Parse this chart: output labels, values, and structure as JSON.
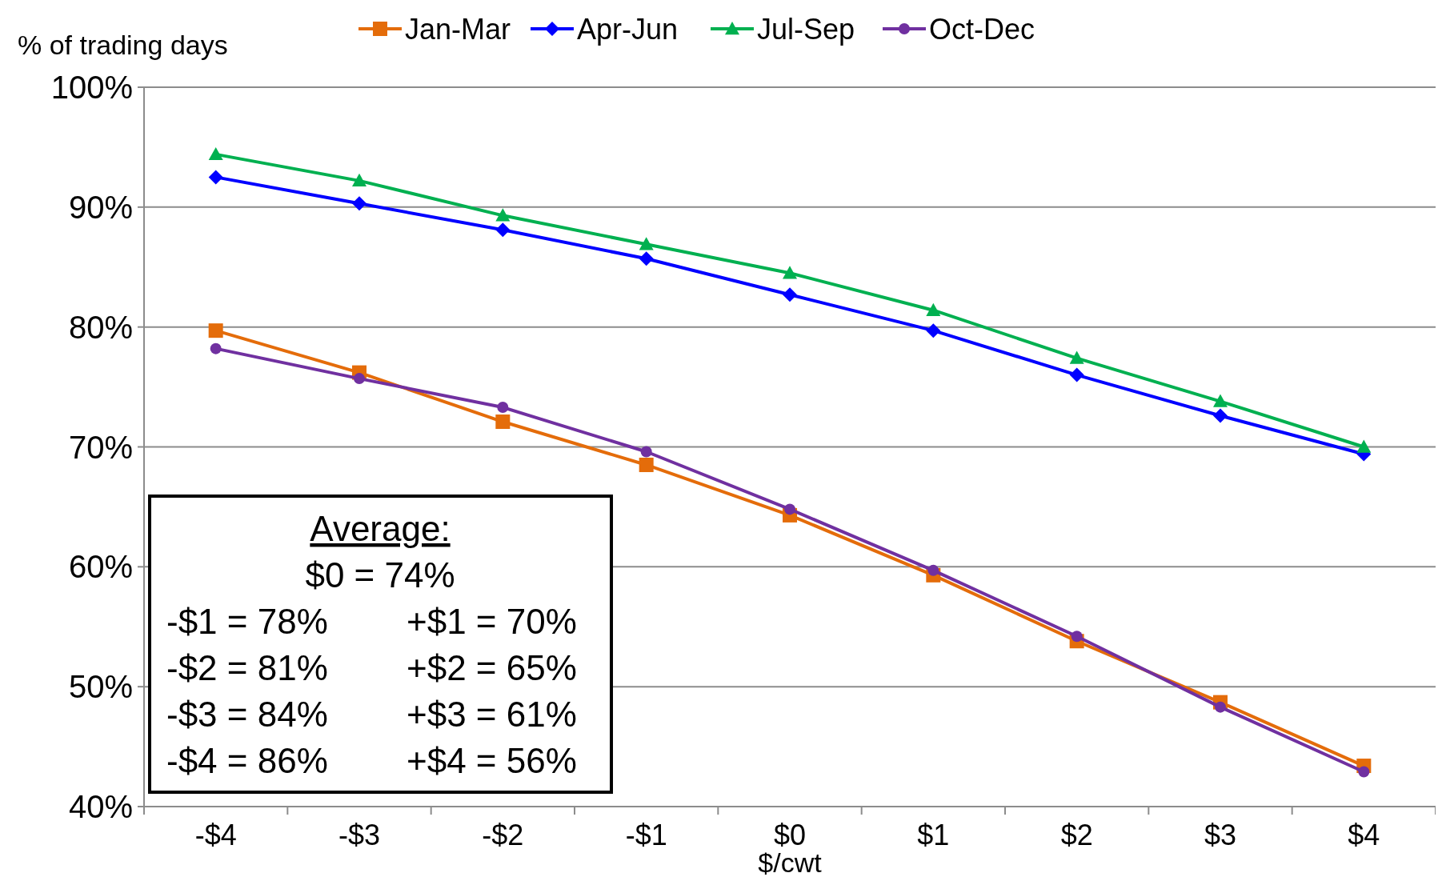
{
  "chart_data": {
    "type": "line",
    "ylabel": "% of trading days",
    "xlabel": "$/cwt",
    "categories": [
      "-$4",
      "-$3",
      "-$2",
      "-$1",
      "$0",
      "$1",
      "$2",
      "$3",
      "$4"
    ],
    "series": [
      {
        "name": "Jan-Mar",
        "color": "#e46c0a",
        "marker": "square",
        "values": [
          79.7,
          76.2,
          72.1,
          68.5,
          64.3,
          59.3,
          53.8,
          48.7,
          43.4
        ]
      },
      {
        "name": "Apr-Jun",
        "color": "#0000ff",
        "marker": "diamond",
        "values": [
          92.5,
          90.3,
          88.1,
          85.7,
          82.7,
          79.7,
          76.0,
          72.6,
          69.4
        ]
      },
      {
        "name": "Jul-Sep",
        "color": "#00b050",
        "marker": "triangle",
        "values": [
          94.4,
          92.2,
          89.3,
          86.9,
          84.5,
          81.4,
          77.4,
          73.8,
          70.0
        ]
      },
      {
        "name": "Oct-Dec",
        "color": "#7030a0",
        "marker": "circle",
        "values": [
          78.2,
          75.7,
          73.3,
          69.6,
          64.8,
          59.7,
          54.2,
          48.3,
          42.9
        ]
      }
    ],
    "ylim": [
      40,
      100
    ],
    "yticks": [
      {
        "value": 40,
        "label": "40%"
      },
      {
        "value": 50,
        "label": "50%"
      },
      {
        "value": 60,
        "label": "60%"
      },
      {
        "value": 70,
        "label": "70%"
      },
      {
        "value": 80,
        "label": "80%"
      },
      {
        "value": 90,
        "label": "90%"
      },
      {
        "value": 100,
        "label": "100%"
      }
    ],
    "grid": "y",
    "legend": "top",
    "annotations": [
      "Average:",
      "$0 = 74%",
      "-$1 = 78%",
      "+$1 = 70%",
      "-$2 = 81%",
      "+$2 = 65%",
      "-$3 = 84%",
      "+$3 = 61%",
      "-$4 = 86%",
      "+$4 = 56%"
    ]
  }
}
